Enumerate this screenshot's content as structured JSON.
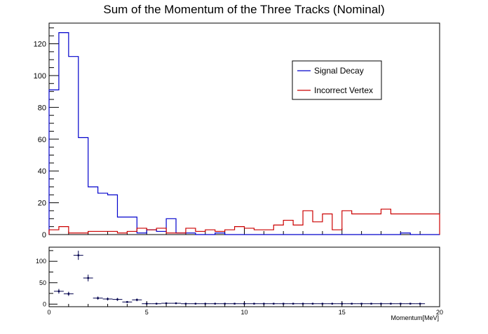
{
  "chart_data": {
    "title": "Sum of the Momentum of the Three Tracks (Nominal)",
    "xlabel": "Momentum[MeV]",
    "type": "histogram",
    "top": {
      "type": "line",
      "xlim": [
        0,
        20
      ],
      "ylim": [
        0,
        133
      ],
      "yticks": [
        "0",
        "20",
        "40",
        "60",
        "80",
        "100",
        "120"
      ],
      "bin_edges": [
        0,
        0.5,
        1,
        1.5,
        2,
        2.5,
        3,
        3.5,
        4,
        4.5,
        5,
        5.5,
        6,
        6.5,
        7,
        7.5,
        8,
        8.5,
        9,
        9.5,
        10,
        10.5,
        11,
        11.5,
        12,
        12.5,
        13,
        13.5,
        14,
        14.5,
        15,
        15.5,
        16,
        16.5,
        17,
        17.5,
        18,
        18.5,
        19,
        19.5,
        20
      ],
      "legend_position": "top-right",
      "series": [
        {
          "name": "Signal Decay",
          "color": "#0000cc",
          "values": [
            91,
            127,
            112,
            61,
            30,
            26,
            25,
            11,
            11,
            1,
            3,
            2,
            10,
            1,
            1,
            0,
            0,
            1,
            0,
            0,
            0,
            0,
            0,
            0,
            0,
            0,
            0,
            0,
            0,
            0,
            0,
            0,
            0,
            0,
            0,
            0,
            1,
            0,
            0,
            0
          ]
        },
        {
          "name": "Incorrect Vertex",
          "color": "#cc0000",
          "values": [
            3,
            5,
            1,
            1,
            2,
            2,
            2,
            1,
            2,
            4,
            3,
            4,
            1,
            1,
            4,
            2,
            3,
            2,
            3,
            5,
            4,
            3,
            3,
            6,
            9,
            6,
            15,
            8,
            13,
            3,
            15,
            13,
            13,
            13,
            16,
            13,
            13,
            13,
            13,
            13
          ]
        }
      ]
    },
    "bottom": {
      "type": "scatter",
      "xlim": [
        0,
        20
      ],
      "ylim": [
        -6,
        133
      ],
      "yticks": [
        "0",
        "50",
        "100"
      ],
      "xticks": [
        "0",
        "5",
        "10",
        "15",
        "20"
      ],
      "color": "#00004d",
      "x": [
        0.5,
        1,
        1.5,
        2,
        2.5,
        3,
        3.5,
        4,
        4.5,
        5,
        5.5,
        6,
        6.5,
        7,
        7.5,
        8,
        8.5,
        9,
        9.5,
        10,
        10.5,
        11,
        11.5,
        12,
        12.5,
        13,
        13.5,
        14,
        14.5,
        15,
        15.5,
        16,
        16.5,
        17,
        17.5,
        18,
        18.5,
        19
      ],
      "y": [
        30,
        24,
        114,
        61,
        14,
        12,
        11,
        5,
        10,
        1,
        1,
        2,
        2,
        1,
        1,
        1,
        1,
        1,
        1,
        1,
        1,
        1,
        1,
        1,
        1,
        1,
        1,
        1,
        1,
        1,
        1,
        1,
        1,
        1,
        1,
        1,
        1,
        1
      ]
    }
  }
}
